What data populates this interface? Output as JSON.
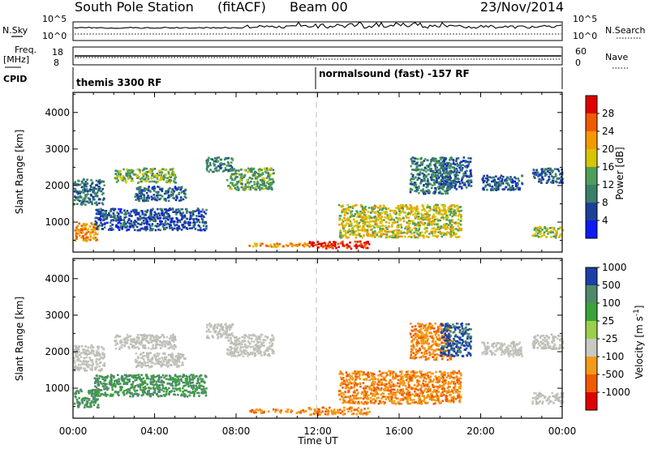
{
  "header": {
    "station": "South Pole Station",
    "mode": "(fitACF)",
    "beam": "Beam 00",
    "date": "23/Nov/2014"
  },
  "strip_labels": {
    "nsky": "N.Sky",
    "nsky_tick_top": "10^5",
    "nsky_tick_bottom": "10^0",
    "freq": "Freq.",
    "freq_unit": "[MHz]",
    "freq_tick_top": "18",
    "freq_tick_bottom": "8",
    "nsearch": "N.Search",
    "nsearch_tick_top": "10^5",
    "nsearch_tick_bottom": "10^0",
    "nave": "Nave",
    "nave_tick_top": "60",
    "nave_tick_bottom": "0",
    "cpid": "CPID",
    "cpid_left": "themis 3300 RF",
    "cpid_right": "normalsound (fast) -157 RF"
  },
  "panels": {
    "power": {
      "ylabel": "Slant Range [km]",
      "cbar_label": "Power [dB]"
    },
    "velocity": {
      "ylabel": "Slant Range [km]",
      "cbar_label": "Velocity [m s",
      "cbar_label_sup": "-1",
      "cbar_label_end": "]"
    },
    "xlabel": "Time UT"
  },
  "colors": {
    "power_scale": [
      "#0c1cf2",
      "#1c3f9a",
      "#3a7f6a",
      "#4f9f5a",
      "#d8c400",
      "#f29a00",
      "#f05a00",
      "#e00000"
    ],
    "velocity_scale": [
      "#e00000",
      "#f05a00",
      "#f39a17",
      "#c9c9c2",
      "#9ad04a",
      "#3aa33a",
      "#4e8a6a",
      "#1b3fa6"
    ],
    "ground_scatter": "#bdbdb6"
  },
  "chart_data": [
    {
      "type": "heatmap",
      "title": "Power",
      "x_range_hours": [
        0,
        24
      ],
      "x_ticks": [
        "00:00",
        "04:00",
        "08:00",
        "12:00",
        "16:00",
        "20:00",
        "00:00"
      ],
      "y_range_km": [
        180,
        4550
      ],
      "y_ticks": [
        1000,
        2000,
        3000,
        4000
      ],
      "colorbar_ticks": [
        "4",
        "8",
        "12",
        "16",
        "20",
        "24",
        "28"
      ],
      "colorbar_range": [
        0,
        32
      ],
      "dashed_marker_hour": 12,
      "scatter_regions": [
        {
          "t0": 0.0,
          "t1": 1.2,
          "r0": 500,
          "r1": 1000,
          "level": 0.75
        },
        {
          "t0": 0.0,
          "t1": 1.5,
          "r0": 1500,
          "r1": 2200,
          "level": 0.25
        },
        {
          "t0": 2.0,
          "t1": 5.0,
          "r0": 2100,
          "r1": 2500,
          "level": 0.45
        },
        {
          "t0": 3.0,
          "t1": 5.5,
          "r0": 1600,
          "r1": 2000,
          "level": 0.2
        },
        {
          "t0": 6.5,
          "t1": 7.8,
          "r0": 2400,
          "r1": 2800,
          "level": 0.3
        },
        {
          "t0": 7.5,
          "t1": 9.8,
          "r0": 1900,
          "r1": 2500,
          "level": 0.4
        },
        {
          "t0": 1.0,
          "t1": 6.5,
          "r0": 800,
          "r1": 1400,
          "level": 0.15
        },
        {
          "t0": 8.5,
          "t1": 11.5,
          "r0": 350,
          "r1": 450,
          "level": 0.7
        },
        {
          "t0": 11.5,
          "t1": 14.5,
          "r0": 300,
          "r1": 500,
          "level": 0.95
        },
        {
          "t0": 13.0,
          "t1": 19.0,
          "r0": 600,
          "r1": 1500,
          "level": 0.55
        },
        {
          "t0": 16.5,
          "t1": 18.5,
          "r0": 1800,
          "r1": 2800,
          "level": 0.3
        },
        {
          "t0": 18.0,
          "t1": 19.5,
          "r0": 1900,
          "r1": 2800,
          "level": 0.2
        },
        {
          "t0": 20.0,
          "t1": 22.0,
          "r0": 1900,
          "r1": 2300,
          "level": 0.2
        },
        {
          "t0": 22.5,
          "t1": 24.0,
          "r0": 2100,
          "r1": 2500,
          "level": 0.2
        },
        {
          "t0": 22.5,
          "t1": 24.0,
          "r0": 600,
          "r1": 900,
          "level": 0.5
        }
      ]
    },
    {
      "type": "heatmap",
      "title": "Velocity",
      "x_range_hours": [
        0,
        24
      ],
      "x_ticks": [
        "00:00",
        "04:00",
        "08:00",
        "12:00",
        "16:00",
        "20:00",
        "00:00"
      ],
      "y_range_km": [
        180,
        4550
      ],
      "y_ticks": [
        1000,
        2000,
        3000,
        4000
      ],
      "colorbar_ticks": [
        "-1000",
        "-500",
        "-100",
        "-25",
        "25",
        "100",
        "500",
        "1000"
      ],
      "dashed_marker_hour": 12,
      "scatter_regions": [
        {
          "t0": 0.0,
          "t1": 1.2,
          "r0": 500,
          "r1": 1000,
          "kind": "green"
        },
        {
          "t0": 0.0,
          "t1": 1.5,
          "r0": 1500,
          "r1": 2200,
          "kind": "gray"
        },
        {
          "t0": 2.0,
          "t1": 5.0,
          "r0": 2100,
          "r1": 2500,
          "kind": "gray"
        },
        {
          "t0": 3.0,
          "t1": 5.5,
          "r0": 1600,
          "r1": 2000,
          "kind": "gray"
        },
        {
          "t0": 6.5,
          "t1": 7.8,
          "r0": 2400,
          "r1": 2800,
          "kind": "gray"
        },
        {
          "t0": 7.5,
          "t1": 9.8,
          "r0": 1900,
          "r1": 2500,
          "kind": "gray"
        },
        {
          "t0": 1.0,
          "t1": 6.5,
          "r0": 800,
          "r1": 1400,
          "kind": "green"
        },
        {
          "t0": 8.5,
          "t1": 11.5,
          "r0": 350,
          "r1": 450,
          "kind": "orange"
        },
        {
          "t0": 11.5,
          "t1": 14.5,
          "r0": 300,
          "r1": 500,
          "kind": "orange"
        },
        {
          "t0": 13.0,
          "t1": 19.0,
          "r0": 600,
          "r1": 1500,
          "kind": "orange"
        },
        {
          "t0": 16.5,
          "t1": 18.5,
          "r0": 1800,
          "r1": 2800,
          "kind": "orange"
        },
        {
          "t0": 18.0,
          "t1": 19.5,
          "r0": 1900,
          "r1": 2800,
          "kind": "blue"
        },
        {
          "t0": 20.0,
          "t1": 22.0,
          "r0": 1900,
          "r1": 2300,
          "kind": "gray"
        },
        {
          "t0": 22.5,
          "t1": 24.0,
          "r0": 2100,
          "r1": 2500,
          "kind": "gray"
        },
        {
          "t0": 22.5,
          "t1": 24.0,
          "r0": 600,
          "r1": 900,
          "kind": "gray"
        }
      ]
    }
  ]
}
